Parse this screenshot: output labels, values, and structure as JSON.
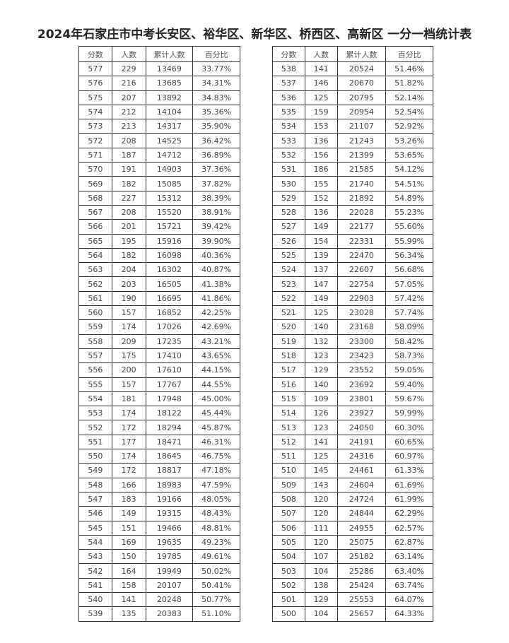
{
  "title": "2024年石家庄市中考长安区、裕华区、新华区、桥西区、高新区 一分一档统计表",
  "headers": [
    "分数",
    "人数",
    "累计人数",
    "百分比"
  ],
  "left_rows": [
    [
      "577",
      "229",
      "13469",
      "33.77%"
    ],
    [
      "576",
      "216",
      "13685",
      "34.31%"
    ],
    [
      "575",
      "207",
      "13892",
      "34.83%"
    ],
    [
      "574",
      "212",
      "14104",
      "35.36%"
    ],
    [
      "573",
      "213",
      "14317",
      "35.90%"
    ],
    [
      "572",
      "208",
      "14525",
      "36.42%"
    ],
    [
      "571",
      "187",
      "14712",
      "36.89%"
    ],
    [
      "570",
      "191",
      "14903",
      "37.36%"
    ],
    [
      "569",
      "182",
      "15085",
      "37.82%"
    ],
    [
      "568",
      "227",
      "15312",
      "38.39%"
    ],
    [
      "567",
      "208",
      "15520",
      "38.91%"
    ],
    [
      "566",
      "201",
      "15721",
      "39.42%"
    ],
    [
      "565",
      "195",
      "15916",
      "39.90%"
    ],
    [
      "564",
      "182",
      "16098",
      "40.36%"
    ],
    [
      "563",
      "204",
      "16302",
      "40.87%"
    ],
    [
      "562",
      "203",
      "16505",
      "41.38%"
    ],
    [
      "561",
      "190",
      "16695",
      "41.86%"
    ],
    [
      "560",
      "157",
      "16852",
      "42.25%"
    ],
    [
      "559",
      "174",
      "17026",
      "42.69%"
    ],
    [
      "558",
      "209",
      "17235",
      "43.21%"
    ],
    [
      "557",
      "175",
      "17410",
      "43.65%"
    ],
    [
      "556",
      "200",
      "17610",
      "44.15%"
    ],
    [
      "555",
      "157",
      "17767",
      "44.55%"
    ],
    [
      "554",
      "181",
      "17948",
      "45.00%"
    ],
    [
      "553",
      "174",
      "18122",
      "45.44%"
    ],
    [
      "552",
      "172",
      "18294",
      "45.87%"
    ],
    [
      "551",
      "177",
      "18471",
      "46.31%"
    ],
    [
      "550",
      "174",
      "18645",
      "46.75%"
    ],
    [
      "549",
      "172",
      "18817",
      "47.18%"
    ],
    [
      "548",
      "166",
      "18983",
      "47.59%"
    ],
    [
      "547",
      "183",
      "19166",
      "48.05%"
    ],
    [
      "546",
      "149",
      "19315",
      "48.43%"
    ],
    [
      "545",
      "151",
      "19466",
      "48.81%"
    ],
    [
      "544",
      "169",
      "19635",
      "49.23%"
    ],
    [
      "543",
      "150",
      "19785",
      "49.61%"
    ],
    [
      "542",
      "164",
      "19949",
      "50.02%"
    ],
    [
      "541",
      "158",
      "20107",
      "50.41%"
    ],
    [
      "540",
      "141",
      "20248",
      "50.77%"
    ],
    [
      "539",
      "135",
      "20383",
      "51.10%"
    ]
  ],
  "right_rows": [
    [
      "538",
      "141",
      "20524",
      "51.46%"
    ],
    [
      "537",
      "146",
      "20670",
      "51.82%"
    ],
    [
      "536",
      "125",
      "20795",
      "52.14%"
    ],
    [
      "535",
      "159",
      "20954",
      "52.54%"
    ],
    [
      "534",
      "153",
      "21107",
      "52.92%"
    ],
    [
      "533",
      "136",
      "21243",
      "53.26%"
    ],
    [
      "532",
      "156",
      "21399",
      "53.65%"
    ],
    [
      "531",
      "186",
      "21585",
      "54.12%"
    ],
    [
      "530",
      "155",
      "21740",
      "54.51%"
    ],
    [
      "529",
      "152",
      "21892",
      "54.89%"
    ],
    [
      "528",
      "136",
      "22028",
      "55.23%"
    ],
    [
      "527",
      "149",
      "22177",
      "55.60%"
    ],
    [
      "526",
      "154",
      "22331",
      "55.99%"
    ],
    [
      "525",
      "139",
      "22470",
      "56.34%"
    ],
    [
      "524",
      "137",
      "22607",
      "56.68%"
    ],
    [
      "523",
      "147",
      "22754",
      "57.05%"
    ],
    [
      "522",
      "149",
      "22903",
      "57.42%"
    ],
    [
      "521",
      "125",
      "23028",
      "57.74%"
    ],
    [
      "520",
      "140",
      "23168",
      "58.09%"
    ],
    [
      "519",
      "132",
      "23300",
      "58.42%"
    ],
    [
      "518",
      "123",
      "23423",
      "58.73%"
    ],
    [
      "517",
      "129",
      "23552",
      "59.05%"
    ],
    [
      "516",
      "140",
      "23692",
      "59.40%"
    ],
    [
      "515",
      "109",
      "23801",
      "59.67%"
    ],
    [
      "514",
      "126",
      "23927",
      "59.99%"
    ],
    [
      "513",
      "123",
      "24050",
      "60.30%"
    ],
    [
      "512",
      "141",
      "24191",
      "60.65%"
    ],
    [
      "511",
      "125",
      "24316",
      "60.97%"
    ],
    [
      "510",
      "145",
      "24461",
      "61.33%"
    ],
    [
      "509",
      "143",
      "24604",
      "61.69%"
    ],
    [
      "508",
      "120",
      "24724",
      "61.99%"
    ],
    [
      "507",
      "120",
      "24844",
      "62.29%"
    ],
    [
      "506",
      "111",
      "24955",
      "62.57%"
    ],
    [
      "505",
      "120",
      "25075",
      "62.87%"
    ],
    [
      "504",
      "107",
      "25182",
      "63.14%"
    ],
    [
      "503",
      "104",
      "25286",
      "63.40%"
    ],
    [
      "502",
      "138",
      "25424",
      "63.74%"
    ],
    [
      "501",
      "129",
      "25553",
      "64.07%"
    ],
    [
      "500",
      "104",
      "25657",
      "64.33%"
    ]
  ]
}
